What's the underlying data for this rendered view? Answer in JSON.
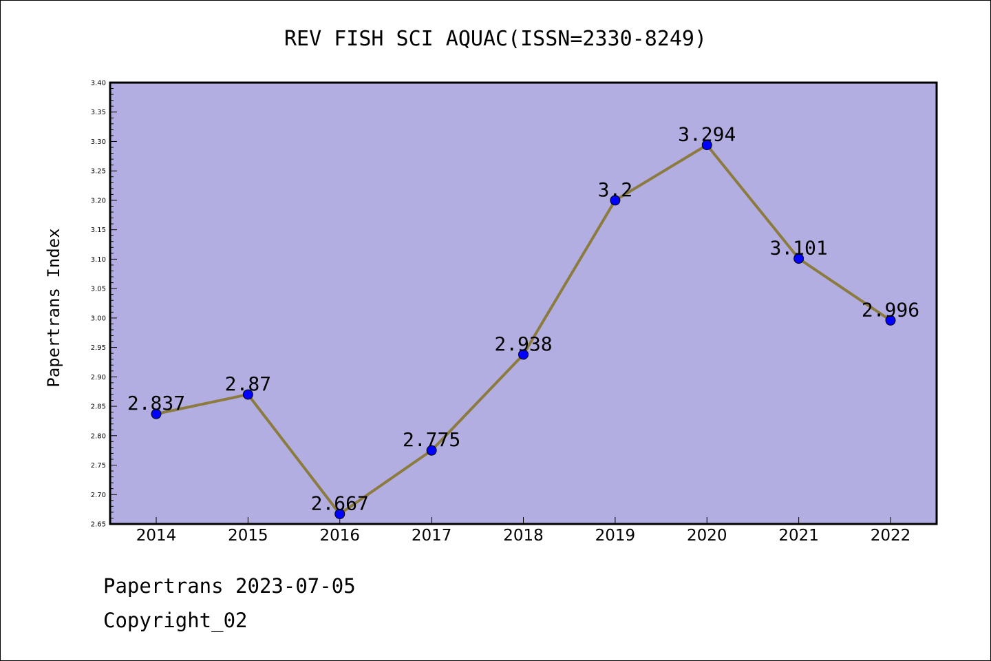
{
  "chart_data": {
    "type": "line",
    "title": "REV FISH SCI AQUAC(ISSN=2330-8249)",
    "xlabel": "",
    "ylabel": "Papertrans Index",
    "categories": [
      "2014",
      "2015",
      "2016",
      "2017",
      "2018",
      "2019",
      "2020",
      "2021",
      "2022"
    ],
    "series": [
      {
        "values": [
          2.837,
          2.87,
          2.667,
          2.775,
          2.938,
          3.2,
          3.294,
          3.101,
          2.996
        ],
        "labels": [
          "2.837",
          "2.87",
          "2.667",
          "2.775",
          "2.938",
          "3.2",
          "3.294",
          "3.101",
          "2.996"
        ],
        "line_color": "#8b7b3e",
        "marker_color": "#0000ff"
      }
    ],
    "ylim": [
      2.65,
      3.4
    ],
    "yticks": [
      "2.65",
      "2.70",
      "2.75",
      "2.80",
      "2.85",
      "2.90",
      "2.95",
      "3.00",
      "3.05",
      "3.10",
      "3.15",
      "3.20",
      "3.25",
      "3.30",
      "3.35",
      "3.40"
    ],
    "grid": false,
    "legend": "none",
    "plot_background": "#b3aee2"
  },
  "footer": {
    "line1": "Papertrans 2023-07-05",
    "line2": "Copyright_02"
  }
}
